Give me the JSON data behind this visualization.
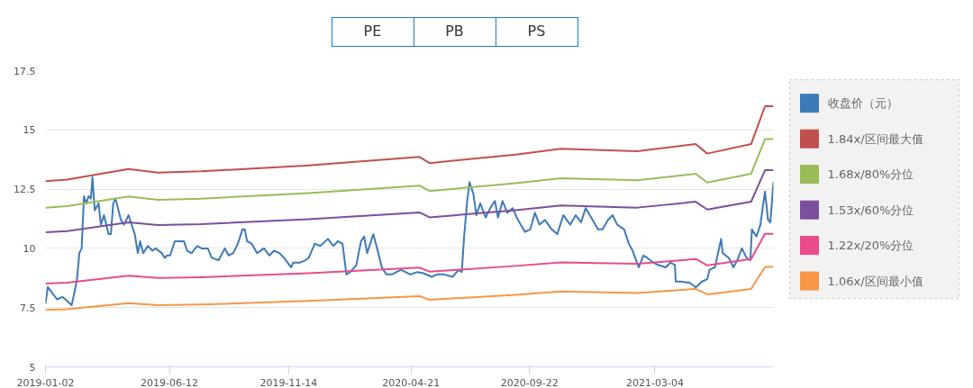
{
  "chart_data": {
    "type": "line",
    "annotations": [
      "PE",
      "PB",
      "PS"
    ],
    "xlim": [
      "2019-01-02",
      "2021-08-05"
    ],
    "ylim": [
      5,
      17.5
    ],
    "xticks": [
      "2019-01-02",
      "2019-06-12",
      "2019-11-14",
      "2020-04-21",
      "2020-09-22",
      "2021-03-04"
    ],
    "yticks": [
      5,
      7.5,
      10,
      12.5,
      15,
      17.5
    ],
    "grid": "y",
    "legend": "right",
    "line_style": "solid",
    "x": [
      "2019-01-02",
      "2019-01-30",
      "2019-04-20",
      "2019-05-28",
      "2019-07-23",
      "2019-12-10",
      "2020-05-02",
      "2020-05-15",
      "2020-09-04",
      "2020-11-02",
      "2021-02-09",
      "2021-04-26",
      "2021-05-11",
      "2021-07-07",
      "2021-07-25",
      "2021-08-05"
    ],
    "series": [
      {
        "name": "收盘价（元）",
        "color": "#3d7ab8",
        "x": [
          "2019-01-02",
          "2019-01-05",
          "2019-01-17",
          "2019-01-24",
          "2019-01-31",
          "2019-02-05",
          "2019-02-09",
          "2019-02-12",
          "2019-02-15",
          "2019-02-18",
          "2019-02-21",
          "2019-02-24",
          "2019-02-27",
          "2019-03-02",
          "2019-03-04",
          "2019-03-07",
          "2019-03-12",
          "2019-03-15",
          "2019-03-19",
          "2019-03-25",
          "2019-03-28",
          "2019-03-31",
          "2019-04-03",
          "2019-04-10",
          "2019-04-14",
          "2019-04-20",
          "2019-04-23",
          "2019-04-28",
          "2019-05-02",
          "2019-05-05",
          "2019-05-09",
          "2019-05-15",
          "2019-05-21",
          "2019-05-25",
          "2019-06-02",
          "2019-06-06",
          "2019-06-09",
          "2019-06-13",
          "2019-06-19",
          "2019-06-25",
          "2019-07-01",
          "2019-07-05",
          "2019-07-11",
          "2019-07-18",
          "2019-07-24",
          "2019-08-01",
          "2019-08-06",
          "2019-08-15",
          "2019-08-23",
          "2019-08-28",
          "2019-09-03",
          "2019-09-09",
          "2019-09-15",
          "2019-09-18",
          "2019-09-21",
          "2019-09-27",
          "2019-10-04",
          "2019-10-13",
          "2019-10-20",
          "2019-10-26",
          "2019-11-02",
          "2019-11-08",
          "2019-11-17",
          "2019-11-20",
          "2019-11-29",
          "2019-12-06",
          "2019-12-10",
          "2019-12-18",
          "2019-12-25",
          "2020-01-04",
          "2020-01-11",
          "2020-01-17",
          "2020-01-23",
          "2020-01-28",
          "2020-02-02",
          "2020-02-10",
          "2020-02-16",
          "2020-02-20",
          "2020-02-24",
          "2020-03-03",
          "2020-03-08",
          "2020-03-14",
          "2020-03-20",
          "2020-03-27",
          "2020-04-08",
          "2020-04-20",
          "2020-04-29",
          "2020-05-07",
          "2020-05-18",
          "2020-05-25",
          "2020-06-03",
          "2020-06-14",
          "2020-06-22",
          "2020-06-26",
          "2020-06-29",
          "2020-07-03",
          "2020-07-06",
          "2020-07-11",
          "2020-07-15",
          "2020-07-20",
          "2020-07-27",
          "2020-08-02",
          "2020-08-08",
          "2020-08-12",
          "2020-08-18",
          "2020-08-24",
          "2020-08-31",
          "2020-09-07",
          "2020-09-16",
          "2020-09-23",
          "2020-09-29",
          "2020-10-05",
          "2020-10-12",
          "2020-10-21",
          "2020-10-28",
          "2020-11-05",
          "2020-11-14",
          "2020-11-21",
          "2020-11-28",
          "2020-12-04",
          "2020-12-13",
          "2020-12-20",
          "2020-12-26",
          "2021-01-02",
          "2021-01-08",
          "2021-01-14",
          "2021-01-23",
          "2021-01-29",
          "2021-02-03",
          "2021-02-11",
          "2021-02-17",
          "2021-02-22",
          "2021-03-02",
          "2021-03-08",
          "2021-03-18",
          "2021-03-24",
          "2021-03-30",
          "2021-03-31",
          "2021-04-06",
          "2021-04-18",
          "2021-04-26",
          "2021-05-04",
          "2021-05-11",
          "2021-05-14",
          "2021-05-21",
          "2021-05-29",
          "2021-05-31",
          "2021-06-08",
          "2021-06-14",
          "2021-06-19",
          "2021-06-25",
          "2021-07-01",
          "2021-07-06",
          "2021-07-08",
          "2021-07-14",
          "2021-07-19",
          "2021-07-25",
          "2021-07-29",
          "2021-08-01",
          "2021-08-05"
        ],
        "values": [
          7.66,
          8.37,
          7.85,
          7.95,
          7.75,
          7.6,
          8.2,
          8.7,
          9.8,
          10.0,
          12.2,
          11.9,
          12.2,
          12.1,
          13.0,
          11.6,
          11.9,
          11.0,
          11.4,
          10.6,
          10.6,
          11.9,
          12.1,
          11.2,
          11.0,
          11.4,
          11.1,
          10.6,
          9.8,
          10.3,
          9.8,
          10.1,
          9.9,
          10.0,
          9.8,
          9.6,
          9.7,
          9.7,
          10.3,
          10.3,
          10.3,
          9.9,
          9.8,
          10.1,
          10.0,
          10.0,
          9.6,
          9.5,
          10.0,
          9.7,
          9.8,
          10.2,
          10.8,
          10.8,
          10.3,
          10.2,
          9.8,
          10.0,
          9.7,
          9.9,
          9.8,
          9.6,
          9.2,
          9.4,
          9.4,
          9.5,
          9.6,
          10.2,
          10.1,
          10.4,
          10.1,
          10.3,
          10.2,
          8.9,
          9.0,
          9.3,
          10.3,
          10.5,
          9.8,
          10.6,
          10.0,
          9.2,
          8.9,
          8.9,
          9.1,
          8.9,
          9.0,
          8.95,
          8.8,
          8.9,
          8.9,
          8.8,
          9.1,
          9.0,
          10.5,
          12.0,
          12.8,
          12.3,
          11.4,
          11.9,
          11.3,
          11.7,
          12.0,
          11.3,
          12.0,
          11.5,
          11.7,
          11.2,
          10.7,
          10.8,
          11.5,
          11.0,
          11.2,
          10.8,
          10.6,
          11.4,
          11.0,
          11.4,
          11.1,
          11.7,
          11.2,
          10.8,
          10.8,
          11.2,
          11.4,
          11.0,
          10.8,
          10.2,
          9.9,
          9.2,
          9.7,
          9.6,
          9.4,
          9.3,
          9.2,
          9.4,
          9.3,
          8.6,
          8.6,
          8.55,
          8.35,
          8.6,
          8.7,
          9.1,
          9.2,
          10.4,
          9.8,
          9.6,
          9.2,
          9.5,
          10.0,
          9.6,
          9.5,
          10.8,
          10.5,
          11.0,
          12.4,
          11.2,
          11.1,
          12.8
        ]
      },
      {
        "name": "1.84x/区间最大值",
        "color": "#c0504d",
        "values": [
          12.84,
          12.9,
          13.35,
          13.2,
          13.25,
          13.5,
          13.86,
          13.6,
          13.96,
          14.2,
          14.1,
          14.4,
          14.0,
          14.4,
          16.0,
          16.0
        ]
      },
      {
        "name": "1.68x/80%分位",
        "color": "#9bbb59",
        "values": [
          11.72,
          11.78,
          12.19,
          12.05,
          12.1,
          12.33,
          12.65,
          12.42,
          12.75,
          12.96,
          12.87,
          13.15,
          12.78,
          13.15,
          14.61,
          14.61
        ]
      },
      {
        "name": "1.53x/60%分位",
        "color": "#7b4f9d",
        "values": [
          10.68,
          10.73,
          11.1,
          10.98,
          11.02,
          11.23,
          11.52,
          11.31,
          11.61,
          11.81,
          11.72,
          11.97,
          11.64,
          11.97,
          13.3,
          13.3
        ]
      },
      {
        "name": "1.22x/20%分位",
        "color": "#e84c8b",
        "values": [
          8.51,
          8.55,
          8.85,
          8.75,
          8.78,
          8.95,
          9.19,
          9.02,
          9.26,
          9.41,
          9.35,
          9.55,
          9.28,
          9.55,
          10.61,
          10.61
        ]
      },
      {
        "name": "1.06x/区间最小值",
        "color": "#f79646",
        "values": [
          7.4,
          7.43,
          7.69,
          7.6,
          7.63,
          7.78,
          7.98,
          7.83,
          8.04,
          8.18,
          8.12,
          8.29,
          8.06,
          8.29,
          9.22,
          9.22
        ]
      }
    ]
  }
}
